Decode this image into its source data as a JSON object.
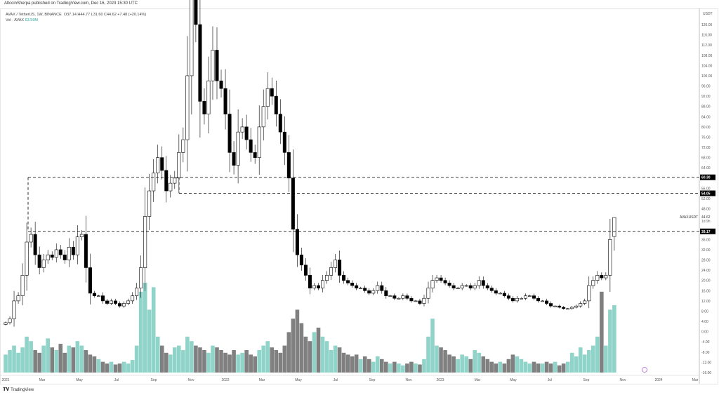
{
  "header": {
    "published": "AltcoinSherpa published on TradingView.com, Dec 16, 2023 15:30 UTC"
  },
  "legend": {
    "symbol": "AVAX / TetherUS, 1W, BINANCE",
    "ohlc": "O37.14 H44.77 L31.60 C44.62 +7.48 (+20.14%)",
    "vol_label": "Vol · AVAX",
    "vol_value": "63.59M"
  },
  "footer": {
    "brand": "TradingView"
  },
  "colors": {
    "up_vol": "#8fd3c9",
    "down_vol": "#808080",
    "line": "#000000"
  },
  "chart_data": {
    "type": "candlestick",
    "title": "AVAX / TetherUS, 1W, BINANCE",
    "currency": "USDT",
    "ylim": [
      -16,
      120
    ],
    "y_ticks": [
      "120.00",
      "116.00",
      "112.00",
      "108.00",
      "104.00",
      "100.00",
      "96.00",
      "92.00",
      "88.00",
      "84.00",
      "80.00",
      "76.00",
      "72.00",
      "68.00",
      "64.00",
      "56.00",
      "52.00",
      "48.00",
      "36.00",
      "32.00",
      "28.00",
      "24.00",
      "20.00",
      "16.00",
      "12.00",
      "8.00",
      "4.00",
      "0.00",
      "-4.00",
      "-8.00",
      "-12.00",
      "-16.00"
    ],
    "x_ticks": [
      "2021",
      "Mar",
      "May",
      "Jul",
      "Sep",
      "Nov",
      "2022",
      "Mar",
      "May",
      "Jul",
      "Sep",
      "Nov",
      "2023",
      "Mar",
      "May",
      "Jul",
      "Sep",
      "Nov",
      "2024",
      "Mar"
    ],
    "weekly_closes": [
      3.5,
      5,
      12,
      14,
      22,
      35,
      38,
      30,
      25,
      28,
      30,
      29,
      32,
      30,
      28,
      33,
      30,
      37,
      38,
      25,
      15,
      14,
      14,
      12,
      11,
      12,
      11,
      10,
      11,
      12,
      14,
      17,
      25,
      45,
      55,
      62,
      68,
      63,
      55,
      58,
      60,
      70,
      75,
      100,
      130,
      120,
      90,
      85,
      98,
      110,
      98,
      95,
      85,
      70,
      65,
      78,
      80,
      75,
      70,
      68,
      80,
      88,
      95,
      92,
      85,
      78,
      70,
      60,
      40,
      30,
      26,
      22,
      17,
      18,
      17,
      20,
      22,
      25,
      28,
      22,
      20,
      19,
      18,
      17,
      17,
      16,
      15,
      16,
      18,
      16,
      14,
      14,
      13,
      13,
      14,
      13,
      12,
      12,
      11,
      13,
      17,
      20,
      21,
      20,
      19,
      18,
      17,
      17,
      18,
      18,
      17,
      18,
      20,
      18,
      17,
      16,
      15,
      15,
      14,
      13,
      12,
      13,
      13,
      14,
      14,
      13,
      12,
      12,
      11,
      10,
      10,
      9.5,
      9,
      9,
      9.5,
      10,
      11,
      12,
      18,
      20,
      22,
      21,
      22,
      36,
      37.14
    ],
    "last_candle": {
      "open": 37.14,
      "high": 44.77,
      "low": 31.6,
      "close": 44.62
    },
    "weekly_volume_relative": [
      20,
      25,
      30,
      22,
      28,
      40,
      35,
      25,
      22,
      30,
      38,
      28,
      25,
      32,
      22,
      30,
      28,
      35,
      30,
      25,
      20,
      18,
      15,
      12,
      10,
      12,
      9,
      10,
      12,
      10,
      14,
      30,
      90,
      100,
      70,
      95,
      40,
      30,
      22,
      20,
      28,
      30,
      25,
      40,
      35,
      30,
      28,
      25,
      22,
      30,
      28,
      25,
      22,
      20,
      25,
      20,
      22,
      25,
      20,
      18,
      25,
      30,
      35,
      28,
      25,
      22,
      30,
      45,
      60,
      70,
      55,
      40,
      35,
      45,
      50,
      40,
      35,
      25,
      30,
      28,
      22,
      20,
      18,
      20,
      15,
      18,
      15,
      12,
      18,
      15,
      12,
      10,
      12,
      10,
      8,
      10,
      12,
      10,
      9,
      15,
      40,
      60,
      30,
      28,
      25,
      20,
      18,
      15,
      20,
      18,
      15,
      25,
      22,
      18,
      15,
      12,
      10,
      12,
      10,
      15,
      20,
      18,
      15,
      12,
      10,
      12,
      10,
      10,
      12,
      10,
      12,
      8,
      10,
      12,
      22,
      18,
      28,
      20,
      25,
      30,
      40,
      90,
      30,
      70,
      75
    ],
    "horizontal_levels": [
      {
        "value": 60.3,
        "label": "60.30"
      },
      {
        "value": 54.05,
        "label": "54.05"
      },
      {
        "value": 39.17,
        "label": "39.17"
      }
    ],
    "price_label": {
      "symbol": "AVAXUSDT",
      "value": "44.62",
      "countdown": "1d 9h"
    }
  }
}
